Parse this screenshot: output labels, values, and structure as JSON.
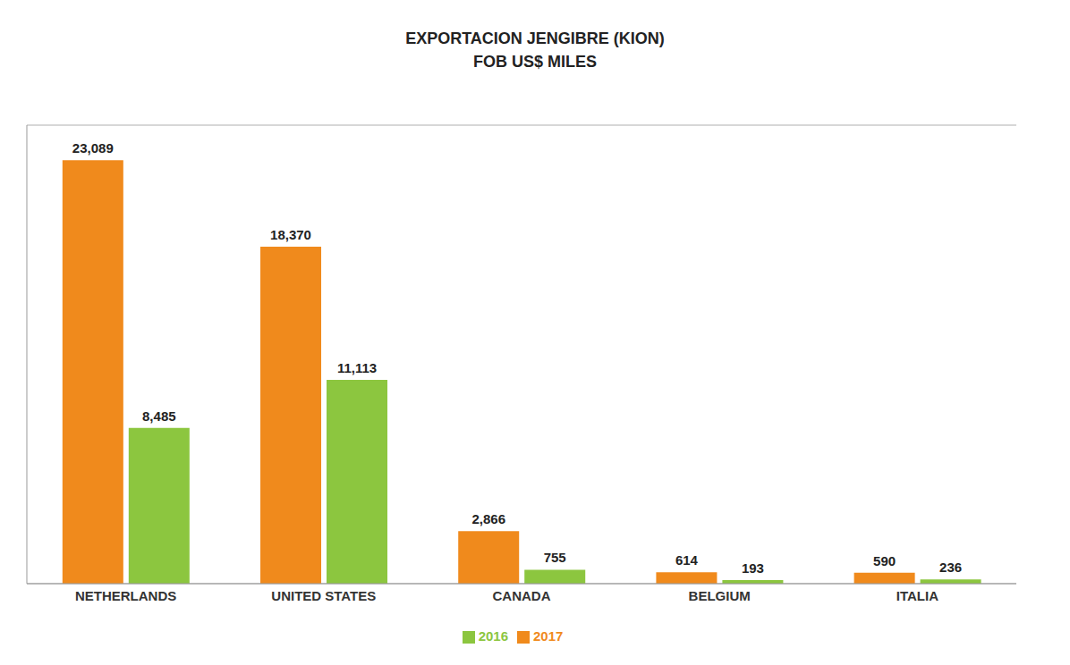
{
  "chart_data": {
    "type": "bar",
    "title": "EXPORTACION JENGIBRE (KION)",
    "subtitle": "FOB US$ MILES",
    "categories": [
      "NETHERLANDS",
      "UNITED STATES",
      "CANADA",
      "BELGIUM",
      "ITALIA"
    ],
    "series": [
      {
        "name": "2017",
        "color": "#f08a1c",
        "values": [
          23089,
          18370,
          2866,
          614,
          590
        ],
        "value_labels": [
          "23,089",
          "18,370",
          "2,866",
          "614",
          "590"
        ]
      },
      {
        "name": "2016",
        "color": "#8cc63f",
        "values": [
          8485,
          11113,
          755,
          193,
          236
        ],
        "value_labels": [
          "8,485",
          "11,113",
          "755",
          "193",
          "236"
        ]
      }
    ],
    "ylim": [
      0,
      25000
    ],
    "yticks": [
      0,
      5000,
      10000,
      15000,
      20000,
      25000
    ],
    "grid": true,
    "legend": "bottom",
    "data_labels": true,
    "tick_labels": "x"
  }
}
